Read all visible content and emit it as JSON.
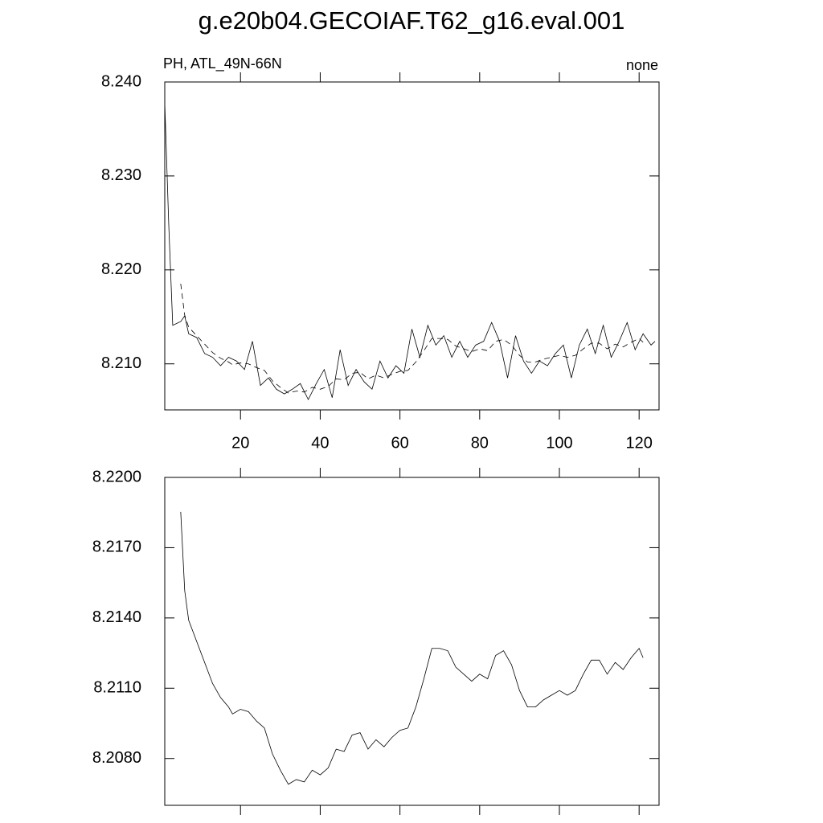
{
  "title": "g.e20b04.GECOIAF.T62_g16.eval.001",
  "chart_data": [
    {
      "type": "line",
      "left_label": "PH, ATL_49N-66N",
      "right_label": "none",
      "xlim": [
        1,
        125
      ],
      "xticks": [
        20,
        40,
        60,
        80,
        100,
        120
      ],
      "x_tick_labels": true,
      "ylim": [
        8.2051,
        8.24
      ],
      "yticks": [
        {
          "value": 8.21,
          "label": "8.210"
        },
        {
          "value": 8.22,
          "label": "8.220"
        },
        {
          "value": 8.23,
          "label": "8.230"
        },
        {
          "value": 8.24,
          "label": "8.240"
        }
      ],
      "series": [
        {
          "color": "#000000",
          "dash": false,
          "x": [
            1,
            2,
            3,
            5,
            6,
            7,
            9,
            11,
            13,
            15,
            17,
            19,
            21,
            23,
            25,
            27,
            29,
            31,
            33,
            35,
            37,
            39,
            41,
            43,
            45,
            47,
            49,
            51,
            53,
            55,
            57,
            59,
            61,
            63,
            65,
            67,
            69,
            71,
            73,
            75,
            77,
            79,
            81,
            83,
            85,
            87,
            89,
            91,
            93,
            95,
            97,
            99,
            101,
            103,
            105,
            107,
            109,
            111,
            113,
            115,
            117,
            119,
            121,
            123,
            124
          ],
          "values": [
            8.2378,
            8.2248,
            8.2141,
            8.2145,
            8.2151,
            8.2132,
            8.2128,
            8.2111,
            8.2107,
            8.2098,
            8.2107,
            8.2103,
            8.2094,
            8.2124,
            8.2077,
            8.2085,
            8.2073,
            8.2068,
            8.2073,
            8.2079,
            8.2062,
            8.2079,
            8.2094,
            8.2064,
            8.2115,
            8.2077,
            8.2094,
            8.2081,
            8.2073,
            8.2103,
            8.2085,
            8.2098,
            8.209,
            8.2137,
            8.2107,
            8.2141,
            8.212,
            8.213,
            8.2107,
            8.2124,
            8.2107,
            8.212,
            8.2124,
            8.2144,
            8.2124,
            8.2085,
            8.213,
            8.2103,
            8.209,
            8.2103,
            8.2098,
            8.2111,
            8.212,
            8.2085,
            8.212,
            8.2137,
            8.2111,
            8.2141,
            8.2107,
            8.2124,
            8.2144,
            8.2115,
            8.2132,
            8.212,
            8.2124
          ]
        },
        {
          "color": "#000000",
          "dash": true,
          "x": [
            5,
            6,
            7,
            9,
            11,
            13,
            15,
            17,
            18,
            20,
            22,
            24,
            26,
            28,
            30,
            32,
            34,
            36,
            38,
            40,
            42,
            44,
            46,
            48,
            50,
            52,
            54,
            56,
            58,
            60,
            62,
            64,
            66,
            68,
            70,
            72,
            74,
            76,
            78,
            80,
            82,
            84,
            86,
            88,
            90,
            92,
            94,
            96,
            98,
            100,
            102,
            104,
            106,
            108,
            110,
            112,
            114,
            116,
            118,
            120,
            121
          ],
          "values": [
            8.21853,
            8.21517,
            8.2139,
            8.213,
            8.2121,
            8.2112,
            8.2106,
            8.2102,
            8.2099,
            8.2101,
            8.21,
            8.2096,
            8.2093,
            8.2082,
            8.2075,
            8.2069,
            8.2071,
            8.207,
            8.2075,
            8.2073,
            8.2076,
            8.2084,
            8.2083,
            8.209,
            8.2091,
            8.2084,
            8.2088,
            8.2085,
            8.2089,
            8.2092,
            8.2093,
            8.2102,
            8.2114,
            8.2127,
            8.2127,
            8.2126,
            8.2119,
            8.2116,
            8.2113,
            8.2116,
            8.2114,
            8.2124,
            8.2126,
            8.212,
            8.2109,
            8.2102,
            8.2102,
            8.2105,
            8.2107,
            8.2109,
            8.2107,
            8.2109,
            8.2116,
            8.2122,
            8.2122,
            8.2116,
            8.2121,
            8.2118,
            8.2123,
            8.2127,
            8.2123
          ]
        }
      ]
    },
    {
      "type": "line",
      "xlim": [
        1,
        125
      ],
      "xticks": [
        20,
        40,
        60,
        80,
        100,
        120
      ],
      "x_tick_labels": false,
      "ylim": [
        8.206,
        8.22
      ],
      "yticks": [
        {
          "value": 8.208,
          "label": "8.2080"
        },
        {
          "value": 8.211,
          "label": "8.2110"
        },
        {
          "value": 8.214,
          "label": "8.2140"
        },
        {
          "value": 8.217,
          "label": "8.2170"
        },
        {
          "value": 8.22,
          "label": "8.2200"
        }
      ],
      "series": [
        {
          "color": "#000000",
          "dash": false,
          "x": [
            5,
            6,
            7,
            9,
            11,
            13,
            15,
            17,
            18,
            20,
            22,
            24,
            26,
            28,
            30,
            32,
            34,
            36,
            38,
            40,
            42,
            44,
            46,
            48,
            50,
            52,
            54,
            56,
            58,
            60,
            62,
            64,
            66,
            68,
            70,
            72,
            74,
            76,
            78,
            80,
            82,
            84,
            86,
            88,
            90,
            92,
            94,
            96,
            98,
            100,
            102,
            104,
            106,
            108,
            110,
            112,
            114,
            116,
            118,
            120,
            121
          ],
          "values": [
            8.21853,
            8.21517,
            8.2139,
            8.213,
            8.2121,
            8.2112,
            8.2106,
            8.2102,
            8.2099,
            8.2101,
            8.21,
            8.2096,
            8.2093,
            8.2082,
            8.2075,
            8.2069,
            8.2071,
            8.207,
            8.2075,
            8.2073,
            8.2076,
            8.2084,
            8.2083,
            8.209,
            8.2091,
            8.2084,
            8.2088,
            8.2085,
            8.2089,
            8.2092,
            8.2093,
            8.2102,
            8.2114,
            8.2127,
            8.2127,
            8.2126,
            8.2119,
            8.2116,
            8.2113,
            8.2116,
            8.2114,
            8.2124,
            8.2126,
            8.212,
            8.2109,
            8.2102,
            8.2102,
            8.2105,
            8.2107,
            8.2109,
            8.2107,
            8.2109,
            8.2116,
            8.2122,
            8.2122,
            8.2116,
            8.2121,
            8.2118,
            8.2123,
            8.2127,
            8.2123
          ]
        }
      ]
    }
  ]
}
